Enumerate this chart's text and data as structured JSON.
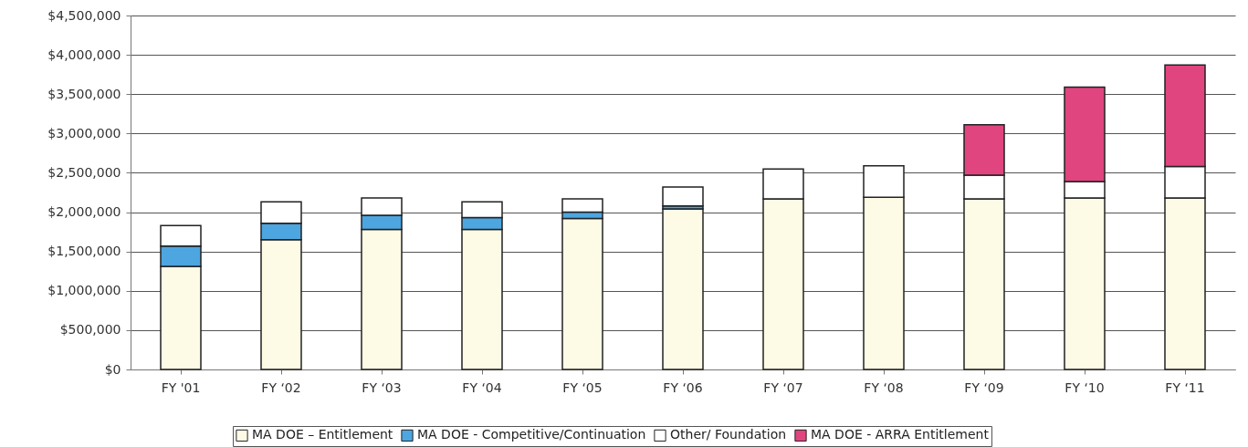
{
  "chart_data": {
    "type": "bar",
    "stacked": true,
    "categories": [
      "FY '01",
      "FY ‘02",
      "FY ‘03",
      "FY ‘04",
      "FY ‘05",
      "FY ‘06",
      "FY ‘07",
      "FY ‘08",
      "FY ‘09",
      "FY ‘10",
      "FY ‘11"
    ],
    "series": [
      {
        "name": "MA DOE – Entitlement",
        "color": "#fdfbe6",
        "values": [
          1310000,
          1650000,
          1780000,
          1780000,
          1920000,
          2040000,
          2170000,
          2190000,
          2170000,
          2180000,
          2180000
        ]
      },
      {
        "name": "MA DOE - Competitive/Continuation",
        "color": "#4da6e0",
        "values": [
          260000,
          210000,
          180000,
          150000,
          80000,
          40000,
          null,
          null,
          null,
          null,
          null
        ]
      },
      {
        "name": "Other/ Foundation",
        "color": "#ffffff",
        "values": [
          260000,
          270000,
          220000,
          200000,
          170000,
          240000,
          380000,
          400000,
          300000,
          210000,
          400000
        ]
      },
      {
        "name": "MA DOE - ARRA Entitlement",
        "color": "#e0457f",
        "values": [
          null,
          null,
          null,
          null,
          null,
          null,
          null,
          null,
          640000,
          1200000,
          1290000
        ]
      }
    ],
    "ylim": [
      0,
      4500000
    ],
    "yticks": [
      {
        "value": 0,
        "label": "$0"
      },
      {
        "value": 500000,
        "label": "$500,000"
      },
      {
        "value": 1000000,
        "label": "$1,000,000"
      },
      {
        "value": 1500000,
        "label": "$1,500,000"
      },
      {
        "value": 2000000,
        "label": "$2,000,000"
      },
      {
        "value": 2500000,
        "label": "$2,500,000"
      },
      {
        "value": 3000000,
        "label": "$3,000,000"
      },
      {
        "value": 3500000,
        "label": "$3,500,000"
      },
      {
        "value": 4000000,
        "label": "$4,000,000"
      },
      {
        "value": 4500000,
        "label": "$4,500,000"
      }
    ],
    "grid": "y",
    "legend": "bottom"
  }
}
